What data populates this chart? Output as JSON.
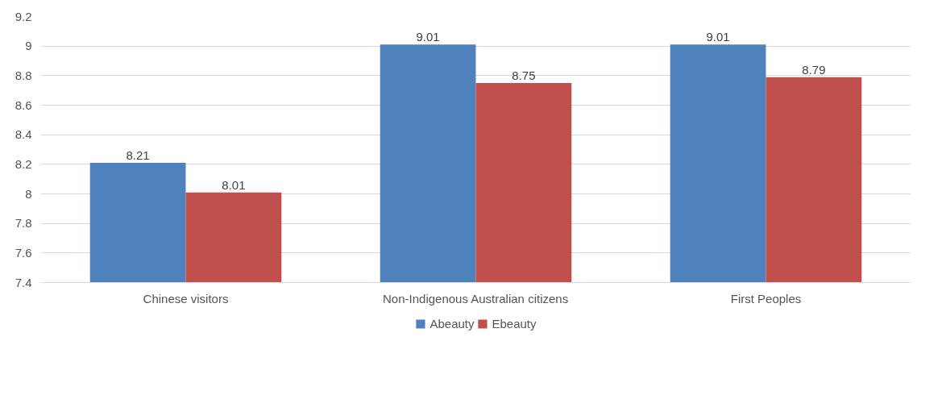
{
  "chart_data": {
    "type": "bar",
    "categories": [
      "Chinese visitors",
      "Non-Indigenous Australian citizens",
      "First Peoples"
    ],
    "series": [
      {
        "name": "Abeauty",
        "color": "#4f81bd",
        "values": [
          8.21,
          9.01,
          9.01
        ]
      },
      {
        "name": "Ebeauty",
        "color": "#c0504d",
        "values": [
          8.01,
          8.75,
          8.79
        ]
      }
    ],
    "ylim": [
      7.4,
      9.2
    ],
    "yticks": [
      7.4,
      7.6,
      7.8,
      8,
      8.2,
      8.4,
      8.6,
      8.8,
      9,
      9.2
    ],
    "grid": "y",
    "legend": "bottom",
    "data_labels": true
  }
}
